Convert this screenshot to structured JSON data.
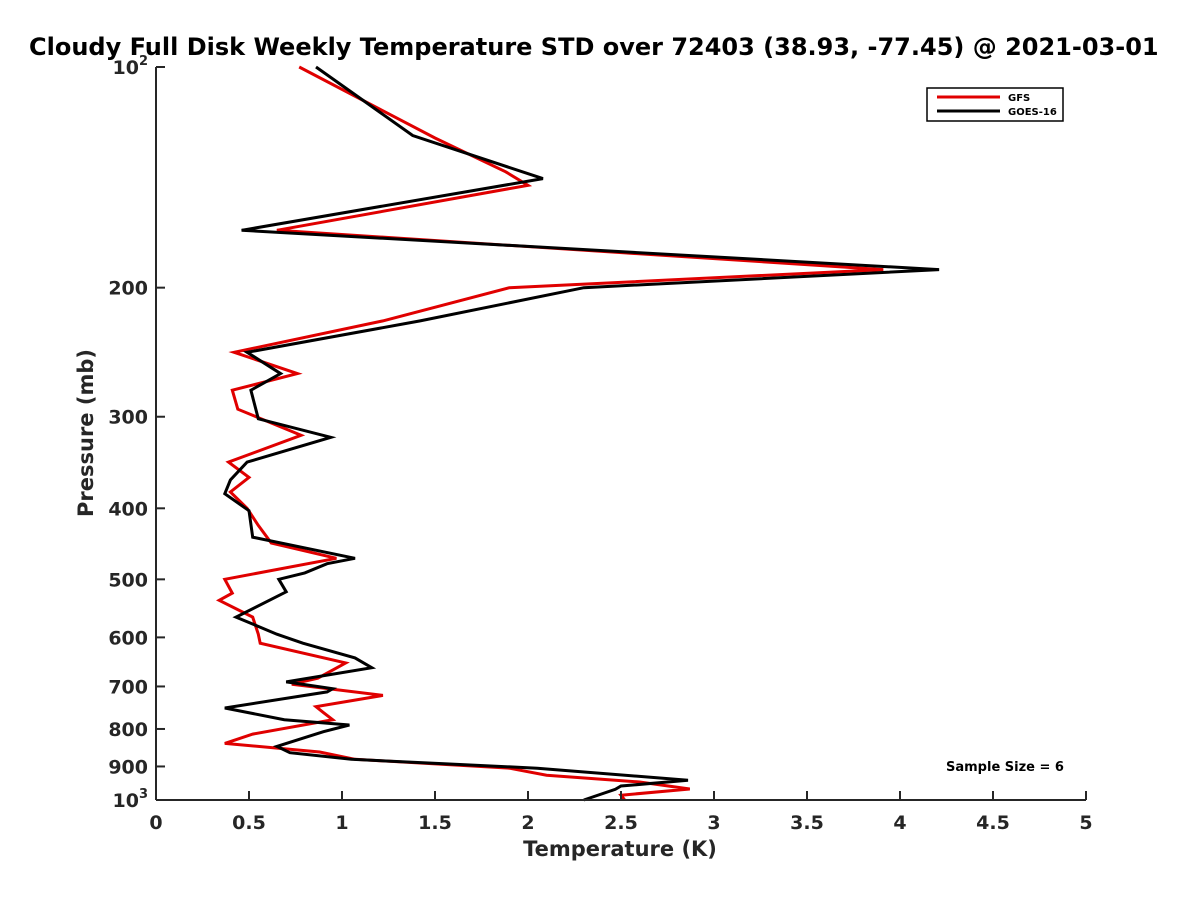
{
  "chart_data": {
    "type": "line",
    "title": "Cloudy Full Disk Weekly Temperature STD over 72403 (38.93, -77.45) @ 2021-03-01",
    "xlabel": "Temperature (K)",
    "ylabel": "Pressure (mb)",
    "xlim": [
      0,
      5
    ],
    "ylim": [
      100,
      1000
    ],
    "y_scale": "log",
    "y_reversed": true,
    "x_ticks": [
      "0",
      "0.5",
      "1",
      "1.5",
      "2",
      "2.5",
      "3",
      "3.5",
      "4",
      "4.5",
      "5"
    ],
    "y_ticks": [
      {
        "value": 100,
        "label": "10",
        "exp": "2"
      },
      {
        "value": 200,
        "label": "200",
        "exp": ""
      },
      {
        "value": 300,
        "label": "300",
        "exp": ""
      },
      {
        "value": 400,
        "label": "400",
        "exp": ""
      },
      {
        "value": 500,
        "label": "500",
        "exp": ""
      },
      {
        "value": 600,
        "label": "600",
        "exp": ""
      },
      {
        "value": 700,
        "label": "700",
        "exp": ""
      },
      {
        "value": 800,
        "label": "800",
        "exp": ""
      },
      {
        "value": 900,
        "label": "900",
        "exp": ""
      },
      {
        "value": 1000,
        "label": "10",
        "exp": "3"
      }
    ],
    "grid": false,
    "legend_position": "top-right",
    "annotation": "Sample Size = 6",
    "series": [
      {
        "name": "GFS",
        "color": "#e00000",
        "points": [
          [
            0.77,
            100
          ],
          [
            1.5,
            125
          ],
          [
            1.88,
            139
          ],
          [
            2.0,
            145
          ],
          [
            0.65,
            167
          ],
          [
            3.91,
            189
          ],
          [
            1.9,
            200
          ],
          [
            1.22,
            222
          ],
          [
            0.42,
            245
          ],
          [
            0.76,
            262
          ],
          [
            0.41,
            276
          ],
          [
            0.44,
            293
          ],
          [
            0.78,
            318
          ],
          [
            0.39,
            346
          ],
          [
            0.5,
            363
          ],
          [
            0.4,
            380
          ],
          [
            0.49,
            400
          ],
          [
            0.55,
            422
          ],
          [
            0.62,
            446
          ],
          [
            0.97,
            468
          ],
          [
            0.37,
            500
          ],
          [
            0.41,
            522
          ],
          [
            0.34,
            534
          ],
          [
            0.52,
            563
          ],
          [
            0.55,
            594
          ],
          [
            0.56,
            611
          ],
          [
            1.02,
            650
          ],
          [
            0.87,
            682
          ],
          [
            0.73,
            695
          ],
          [
            1.22,
            720
          ],
          [
            0.86,
            746
          ],
          [
            0.9,
            760
          ],
          [
            0.95,
            777
          ],
          [
            0.52,
            813
          ],
          [
            0.37,
            837
          ],
          [
            0.88,
            860
          ],
          [
            1.07,
            880
          ],
          [
            1.9,
            905
          ],
          [
            2.1,
            925
          ],
          [
            2.6,
            945
          ],
          [
            2.87,
            966
          ],
          [
            2.5,
            985
          ],
          [
            2.52,
            1000
          ]
        ]
      },
      {
        "name": "GOES-16",
        "color": "#000000",
        "points": [
          [
            0.86,
            100
          ],
          [
            1.38,
            124
          ],
          [
            2.08,
            142
          ],
          [
            0.46,
            167
          ],
          [
            4.21,
            189
          ],
          [
            2.3,
            200
          ],
          [
            1.42,
            222
          ],
          [
            0.49,
            245
          ],
          [
            0.67,
            262
          ],
          [
            0.51,
            276
          ],
          [
            0.55,
            302
          ],
          [
            0.94,
            320
          ],
          [
            0.49,
            346
          ],
          [
            0.4,
            366
          ],
          [
            0.37,
            382
          ],
          [
            0.5,
            403
          ],
          [
            0.52,
            438
          ],
          [
            1.07,
            468
          ],
          [
            0.92,
            476
          ],
          [
            0.8,
            490
          ],
          [
            0.66,
            500
          ],
          [
            0.7,
            520
          ],
          [
            0.43,
            563
          ],
          [
            0.65,
            594
          ],
          [
            0.79,
            611
          ],
          [
            1.07,
            640
          ],
          [
            1.16,
            660
          ],
          [
            0.7,
            690
          ],
          [
            0.95,
            705
          ],
          [
            0.92,
            712
          ],
          [
            0.37,
            749
          ],
          [
            0.69,
            777
          ],
          [
            1.04,
            790
          ],
          [
            0.9,
            807
          ],
          [
            0.65,
            845
          ],
          [
            0.72,
            862
          ],
          [
            1.05,
            880
          ],
          [
            2.05,
            905
          ],
          [
            2.86,
            940
          ],
          [
            2.5,
            957
          ],
          [
            2.47,
            967
          ],
          [
            2.3,
            1000
          ]
        ]
      }
    ]
  }
}
